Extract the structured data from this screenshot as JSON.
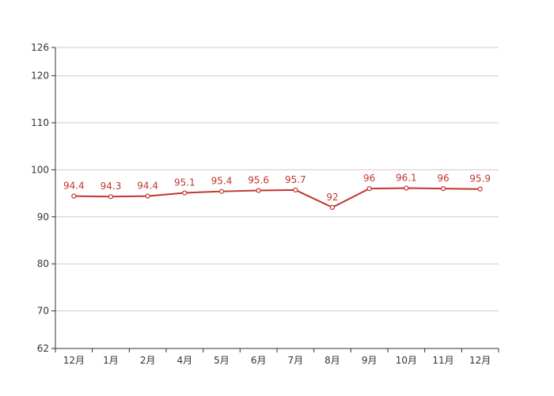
{
  "chart_data": {
    "type": "line",
    "categories": [
      "12月",
      "1月",
      "2月",
      "4月",
      "5月",
      "6月",
      "7月",
      "8月",
      "9月",
      "10月",
      "11月",
      "12月"
    ],
    "series": [
      {
        "values": [
          94.4,
          94.3,
          94.4,
          95.1,
          95.4,
          95.6,
          95.7,
          92,
          96,
          96.1,
          96,
          95.9
        ]
      }
    ],
    "value_labels": [
      "94.4",
      "94.3",
      "94.4",
      "95.1",
      "95.4",
      "95.6",
      "95.7",
      "92",
      "96",
      "96.1",
      "96",
      "95.9"
    ],
    "y_ticks": [
      62,
      70,
      80,
      90,
      100,
      110,
      120,
      126
    ],
    "y_tick_labels": [
      "62",
      "70",
      "80",
      "90",
      "100",
      "110",
      "120",
      "126"
    ],
    "ylim": [
      62,
      126
    ],
    "grid": true,
    "colors": {
      "line": "#c23531",
      "grid": "#cccccc",
      "axis": "#333333"
    }
  }
}
